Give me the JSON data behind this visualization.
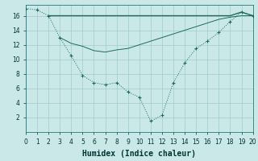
{
  "xlabel": "Humidex (Indice chaleur)",
  "bg_color": "#cbe8e8",
  "grid_color": "#a0cccc",
  "line_color": "#1a6b5a",
  "line1_x": [
    0,
    1,
    2,
    3,
    4,
    5,
    6,
    7,
    8,
    9,
    10,
    11,
    12,
    13,
    14,
    15,
    16,
    17,
    18,
    19,
    20
  ],
  "line1_y": [
    17.0,
    16.8,
    16.0,
    13.0,
    10.5,
    7.8,
    6.8,
    6.5,
    6.8,
    5.5,
    4.8,
    1.5,
    2.3,
    6.8,
    9.5,
    11.5,
    12.5,
    13.7,
    15.2,
    16.5,
    16.0
  ],
  "line2_x": [
    2,
    3,
    4,
    5,
    6,
    7,
    8,
    9,
    10,
    11,
    12,
    13,
    14,
    15,
    16,
    17,
    18,
    19,
    20
  ],
  "line2_y": [
    16.0,
    16.0,
    16.0,
    16.0,
    16.0,
    16.0,
    16.0,
    16.0,
    16.0,
    16.0,
    16.0,
    16.0,
    16.0,
    16.0,
    16.0,
    16.0,
    16.0,
    16.5,
    16.0
  ],
  "line3_x": [
    3,
    4,
    5,
    6,
    7,
    8,
    9,
    10,
    11,
    12,
    13,
    14,
    15,
    16,
    17,
    18,
    19,
    20
  ],
  "line3_y": [
    13.0,
    12.2,
    11.8,
    11.2,
    11.0,
    11.3,
    11.5,
    12.0,
    12.5,
    13.0,
    13.5,
    14.0,
    14.5,
    15.0,
    15.5,
    15.8,
    16.0,
    16.0
  ],
  "xlim": [
    0,
    20
  ],
  "ylim": [
    0,
    17.5
  ],
  "yticks": [
    2,
    4,
    6,
    8,
    10,
    12,
    14,
    16
  ],
  "xticks": [
    0,
    1,
    2,
    3,
    4,
    5,
    6,
    7,
    8,
    9,
    10,
    11,
    12,
    13,
    14,
    15,
    16,
    17,
    18,
    19,
    20
  ],
  "tick_fontsize": 5.5,
  "xlabel_fontsize": 7
}
